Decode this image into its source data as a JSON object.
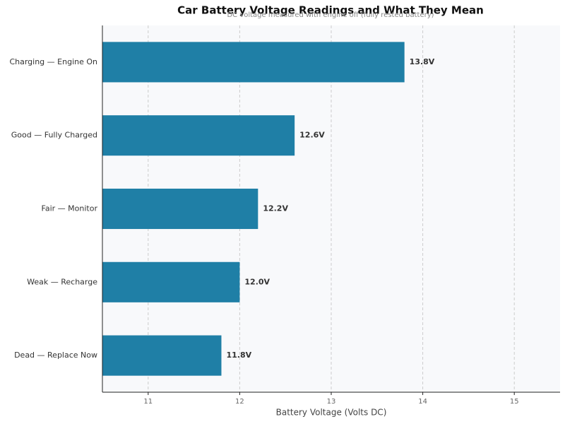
{
  "chart_data": {
    "type": "bar",
    "orientation": "horizontal",
    "title": "Car Battery Voltage Readings and What They Mean",
    "subtitle": "DC voltage measured with engine off (fully rested battery)",
    "x_label": "Battery Voltage (Volts DC)",
    "categories": [
      "Charging — Engine On",
      "Good — Fully Charged",
      "Fair — Monitor",
      "Weak — Recharge",
      "Dead — Replace Now"
    ],
    "values": [
      13.8,
      12.6,
      12.2,
      12.0,
      11.8
    ],
    "value_labels": [
      "13.8V",
      "12.6V",
      "12.2V",
      "12.0V",
      "11.8V"
    ],
    "color": "#1f7fa6",
    "xlim": [
      10.5,
      15.5
    ],
    "xticks": [
      11,
      12,
      13,
      14,
      15
    ],
    "grid": true
  }
}
